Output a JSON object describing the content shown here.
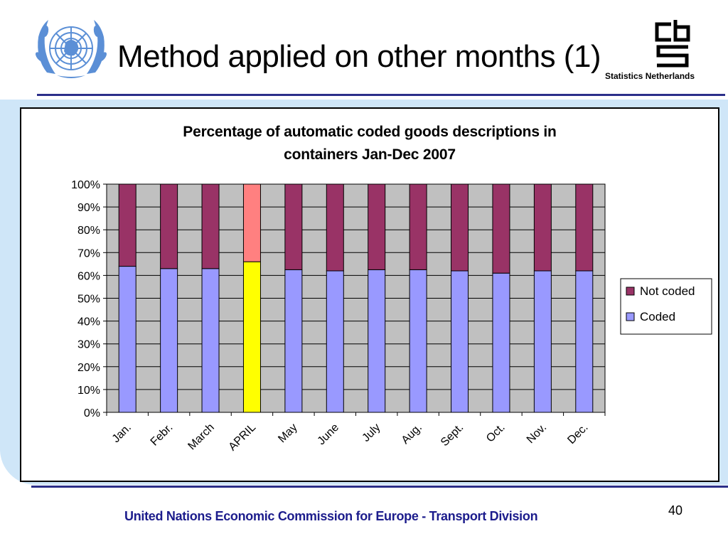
{
  "slide": {
    "title": "Method applied on other months (1)",
    "org_caption": "Statistics Netherlands",
    "footer": "United Nations Economic Commission for Europe - Transport Division",
    "page_number": "40",
    "logos": [
      "un-emblem",
      "cbs-logo"
    ]
  },
  "colors": {
    "band": "#cfe6f8",
    "rule": "#2b2f8a",
    "footer_text": "#1c1c8c",
    "plot_bg": "#c0c0c0",
    "coded": "#9999ff",
    "not_coded": "#993366",
    "april_coded": "#ffff00",
    "april_not_coded": "#ff8080"
  },
  "chart_data": {
    "type": "bar",
    "stacked": true,
    "title_lines": [
      "Percentage of automatic coded goods descriptions in",
      "containers Jan-Dec 2007"
    ],
    "categories": [
      "Jan.",
      "Febr.",
      "March",
      "APRIL",
      "May",
      "June",
      "July",
      "Aug.",
      "Sept.",
      "Oct.",
      "Nov.",
      "Dec."
    ],
    "series": [
      {
        "name": "Coded",
        "values": [
          64,
          63,
          63,
          66,
          62.5,
          62,
          62.5,
          62.5,
          62,
          61,
          62,
          62
        ]
      },
      {
        "name": "Not coded",
        "values": [
          36,
          37,
          37,
          34,
          37.5,
          38,
          37.5,
          37.5,
          38,
          39,
          38,
          38
        ]
      }
    ],
    "highlight_category": "APRIL",
    "ylim": [
      0,
      100
    ],
    "y_ticks": [
      "0%",
      "10%",
      "20%",
      "30%",
      "40%",
      "50%",
      "60%",
      "70%",
      "80%",
      "90%",
      "100%"
    ],
    "grid": true,
    "legend": {
      "position": "right",
      "entries": [
        "Not coded",
        "Coded"
      ]
    }
  }
}
